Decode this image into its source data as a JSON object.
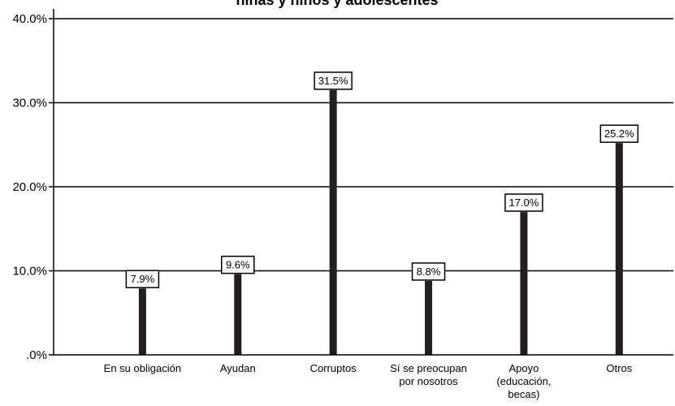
{
  "chart_data": {
    "type": "bar",
    "title": "niñas y niños y adolescentes",
    "categories": [
      [
        "En su obligación"
      ],
      [
        "Ayudan"
      ],
      [
        "Corruptos"
      ],
      [
        "Sí se preocupan",
        "por nosotros"
      ],
      [
        "Apoyo",
        "(educación,",
        "becas)"
      ],
      [
        "Otros"
      ]
    ],
    "values": [
      7.9,
      9.6,
      31.5,
      8.8,
      17.0,
      25.2
    ],
    "data_labels": [
      "7.9%",
      "9.6%",
      "31.5%",
      "8.8%",
      "17.0%",
      "25.2%"
    ],
    "yticks": [
      ".0%",
      "10.0%",
      "20.0%",
      "30.0%",
      "40.0%"
    ],
    "ylim": [
      0,
      40
    ],
    "grid": true,
    "colors": {
      "bar": "#231f20",
      "grid": "#000000",
      "label_border": "#000000"
    }
  }
}
